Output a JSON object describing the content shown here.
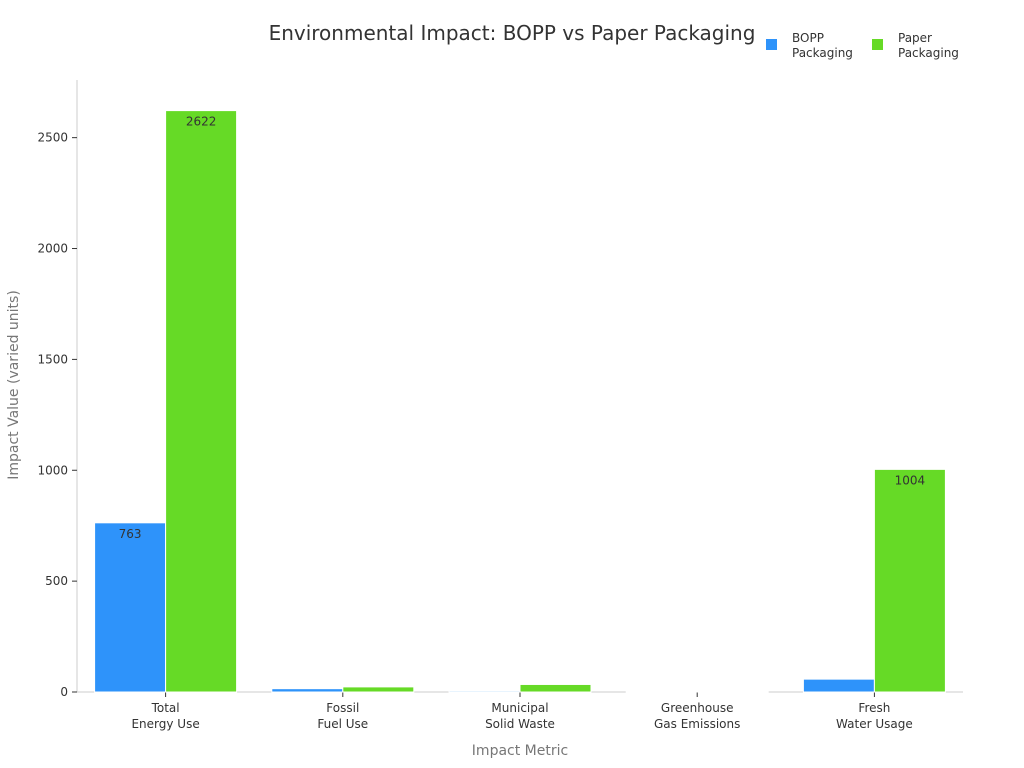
{
  "chart_data": {
    "type": "bar",
    "title": "Environmental Impact: BOPP vs Paper Packaging",
    "xlabel": "Impact Metric",
    "ylabel": "Impact Value (varied units)",
    "categories": [
      [
        "Total",
        "Energy Use"
      ],
      [
        "Fossil",
        "Fuel Use"
      ],
      [
        "Municipal",
        "Solid Waste"
      ],
      [
        "Greenhouse",
        "Gas Emissions"
      ],
      [
        "Fresh",
        "Water Usage"
      ]
    ],
    "series": [
      {
        "name": [
          "BOPP",
          "Packaging"
        ],
        "color": "#2e93fa",
        "values": [
          763,
          15,
          5,
          1,
          58
        ],
        "labels": [
          "763",
          "",
          "",
          "",
          ""
        ]
      },
      {
        "name": [
          "Paper",
          "Packaging"
        ],
        "color": "#66da26",
        "values": [
          2622,
          23,
          34,
          2,
          1004
        ],
        "labels": [
          "2622",
          "",
          "",
          "",
          "1004"
        ]
      }
    ],
    "ylim": [
      0,
      2760
    ],
    "yticks": [
      0,
      500,
      1000,
      1500,
      2000,
      2500
    ],
    "grid": false,
    "legend_position": "top-right"
  }
}
